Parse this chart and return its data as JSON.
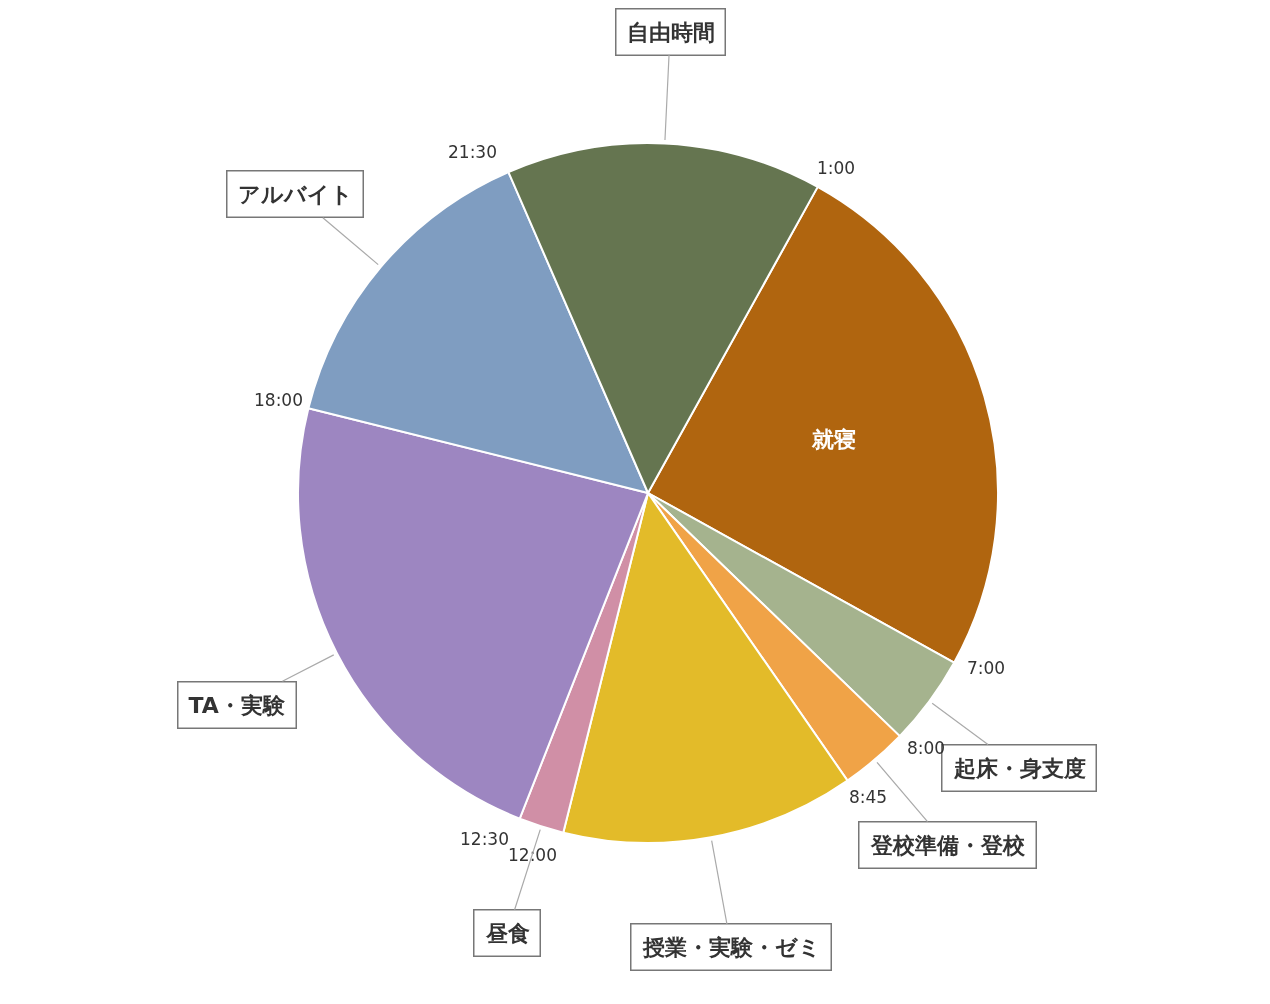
{
  "chart_data": {
    "type": "pie",
    "categories": [
      "就寝",
      "起床・身支度",
      "登校準備・登校",
      "授業・実験・ゼミ",
      "昼食",
      "TA・実験",
      "アルバイト",
      "自由時間"
    ],
    "values": [
      25,
      4.1667,
      3.125,
      13.5417,
      2.0833,
      22.9167,
      14.5833,
      14.5833
    ],
    "colors": [
      "#b0650f",
      "#a5b38e",
      "#f0a347",
      "#e3bb29",
      "#d08fa6",
      "#9d86c1",
      "#7f9dc1",
      "#657550"
    ],
    "annotations": [
      "1:00",
      "7:00",
      "8:00",
      "8:45",
      "12:00",
      "12:30",
      "18:00",
      "21:30"
    ],
    "legend": false
  }
}
